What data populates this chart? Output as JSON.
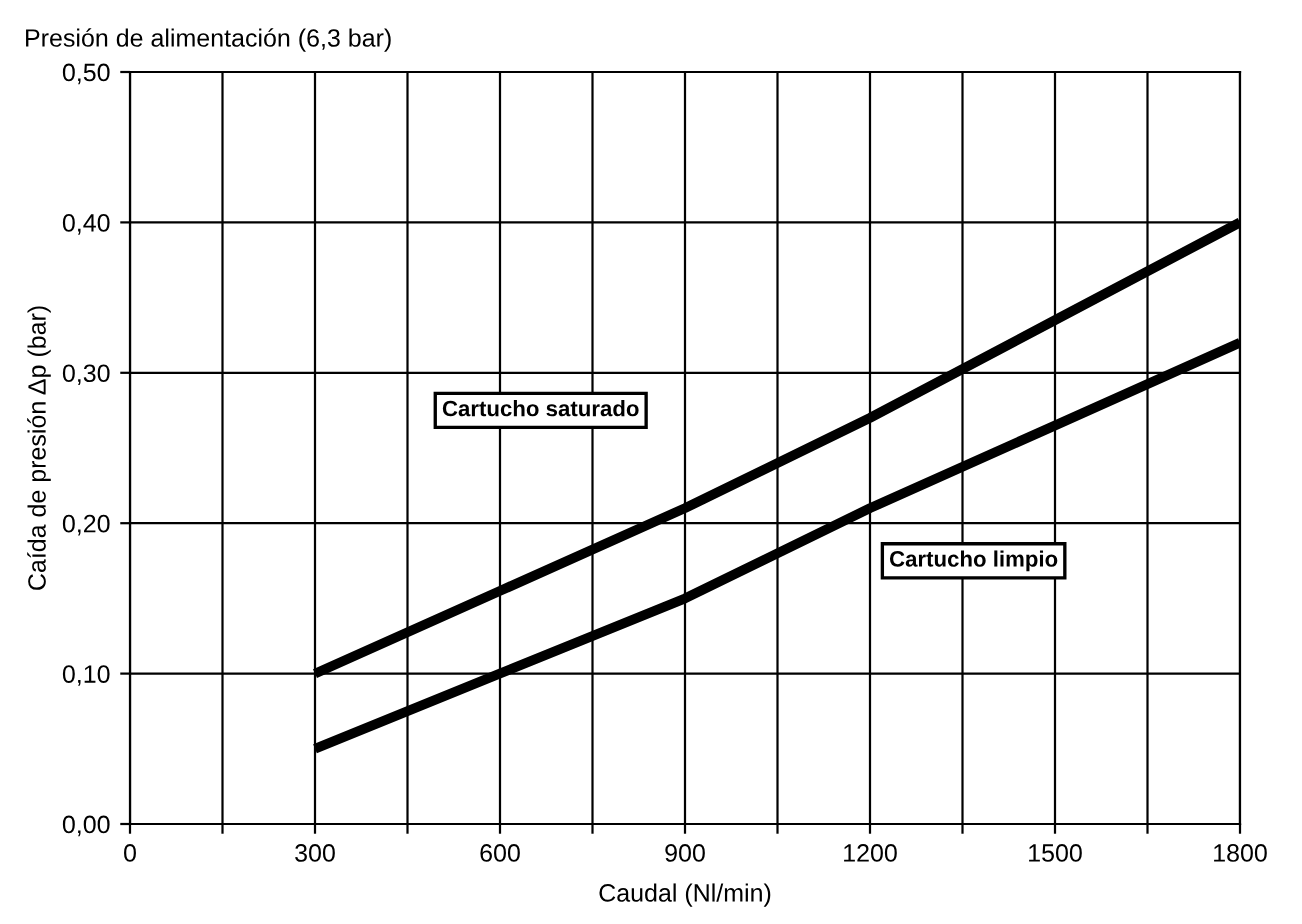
{
  "chart_data": {
    "type": "line",
    "title": "Presión de alimentación (6,3 bar)",
    "xlabel": "Caudal (Nl/min)",
    "ylabel": "Caída de presión Δp (bar)",
    "x": [
      300,
      600,
      900,
      1200,
      1500,
      1800
    ],
    "series": [
      {
        "name": "Cartucho saturado",
        "color": "#000000",
        "values": [
          0.1,
          0.155,
          0.21,
          0.27,
          0.335,
          0.4
        ]
      },
      {
        "name": "Cartucho limpio",
        "color": "#000000",
        "values": [
          0.05,
          0.1,
          0.15,
          0.21,
          0.265,
          0.32
        ]
      }
    ],
    "xlim": [
      0,
      1800
    ],
    "ylim": [
      0,
      0.5
    ],
    "xticks": [
      0,
      {
        "value": 150,
        "label": null
      },
      300,
      {
        "value": 450,
        "label": null
      },
      600,
      {
        "value": 750,
        "label": null
      },
      900,
      {
        "value": 1050,
        "label": null
      },
      1200,
      {
        "value": 1350,
        "label": null
      },
      1500,
      {
        "value": 1650,
        "label": null
      },
      1800
    ],
    "yticks": [
      {
        "value": 0,
        "label": "0,00"
      },
      {
        "value": 0.1,
        "label": "0,10"
      },
      {
        "value": 0.2,
        "label": "0,20"
      },
      {
        "value": 0.3,
        "label": "0,30"
      },
      {
        "value": 0.4,
        "label": "0,40"
      },
      {
        "value": 0.5,
        "label": "0,50"
      }
    ],
    "grid": true,
    "legend": false,
    "marker": "none",
    "line_style": "solid"
  }
}
